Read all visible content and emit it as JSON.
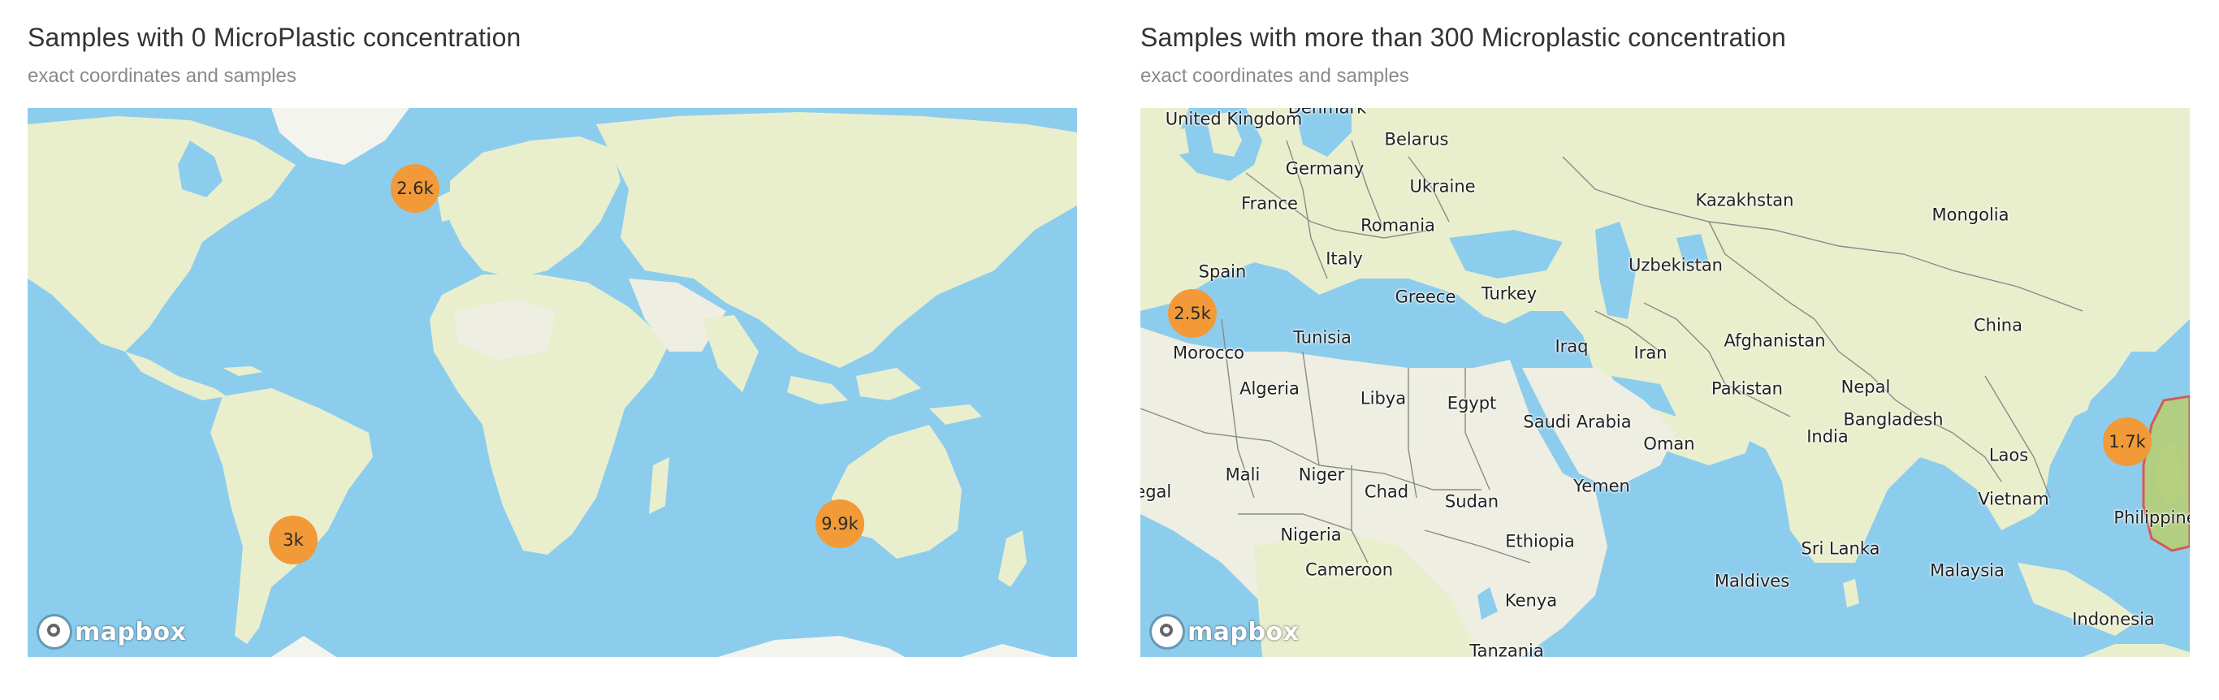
{
  "left_panel": {
    "title": "Samples with 0 MicroPlastic concentration",
    "subtitle": "exact coordinates and samples",
    "clusters": [
      {
        "label": "2.6k"
      },
      {
        "label": "3k"
      },
      {
        "label": "9.9k"
      }
    ],
    "attribution": "mapbox"
  },
  "right_panel": {
    "title": "Samples with more than 300 Microplastic concentration",
    "subtitle": "exact coordinates and samples",
    "clusters": [
      {
        "label": "2.5k"
      },
      {
        "label": "1.7k"
      }
    ],
    "countries": [
      "United Kingdom",
      "Denmark",
      "Belarus",
      "Germany",
      "Ukraine",
      "France",
      "Romania",
      "Kazakhstan",
      "Mongolia",
      "Italy",
      "Spain",
      "Uzbekistan",
      "Greece",
      "Turkey",
      "Tunisia",
      "Morocco",
      "Iraq",
      "Iran",
      "Afghanistan",
      "China",
      "Algeria",
      "Libya",
      "Egypt",
      "Saudi Arabia",
      "Pakistan",
      "Nepal",
      "Bangladesh",
      "India",
      "Oman",
      "Mali",
      "Niger",
      "Chad",
      "Sudan",
      "Yemen",
      "Laos",
      "Vietnam",
      "Philippines",
      "Senegal",
      "Nigeria",
      "Ethiopia",
      "Cameroon",
      "Sri Lanka",
      "Maldives",
      "Malaysia",
      "Kenya",
      "Indonesia",
      "Tanzania"
    ],
    "attribution": "mapbox"
  },
  "colors": {
    "water": "#8ccdee",
    "land": "#e9efcd",
    "cluster": "#f19a37",
    "highlight_region": "#b4cf7c"
  }
}
